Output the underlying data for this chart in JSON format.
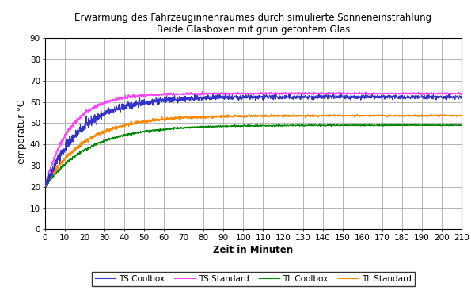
{
  "title_line1": "Erwärmung des Fahrzeuginnenraumes durch simulierte Sonneneinstrahlung",
  "title_line2": "Beide Glasboxen mit grün getöntem Glas",
  "xlabel": "Zeit in Minuten",
  "ylabel": "Temperatur °C",
  "xlim": [
    0,
    210
  ],
  "ylim": [
    0,
    90
  ],
  "xticks": [
    0,
    10,
    20,
    30,
    40,
    50,
    60,
    70,
    80,
    90,
    100,
    110,
    120,
    130,
    140,
    150,
    160,
    170,
    180,
    190,
    200,
    210
  ],
  "yticks": [
    0,
    10,
    20,
    30,
    40,
    50,
    60,
    70,
    80,
    90
  ],
  "series": {
    "TS_Coolbox": {
      "color": "#3333CC",
      "label": "TS Coolbox",
      "plateau": 62.3,
      "tau": 18.0,
      "noise": 1.4
    },
    "TS_Standard": {
      "color": "#FF44FF",
      "label": "TS Standard",
      "plateau": 64.0,
      "tau": 13.0,
      "noise": 0.7
    },
    "TL_Coolbox": {
      "color": "#008800",
      "label": "TL Coolbox",
      "plateau": 49.0,
      "tau": 22.0,
      "noise": 0.4
    },
    "TL_Standard": {
      "color": "#FF8800",
      "label": "TL Standard",
      "plateau": 53.5,
      "tau": 20.0,
      "noise": 0.6
    }
  },
  "background_color": "#ffffff",
  "grid_color": "#999999",
  "title_fontsize": 8.5,
  "axis_label_fontsize": 8.5,
  "tick_fontsize": 7.5,
  "legend_fontsize": 7.5
}
